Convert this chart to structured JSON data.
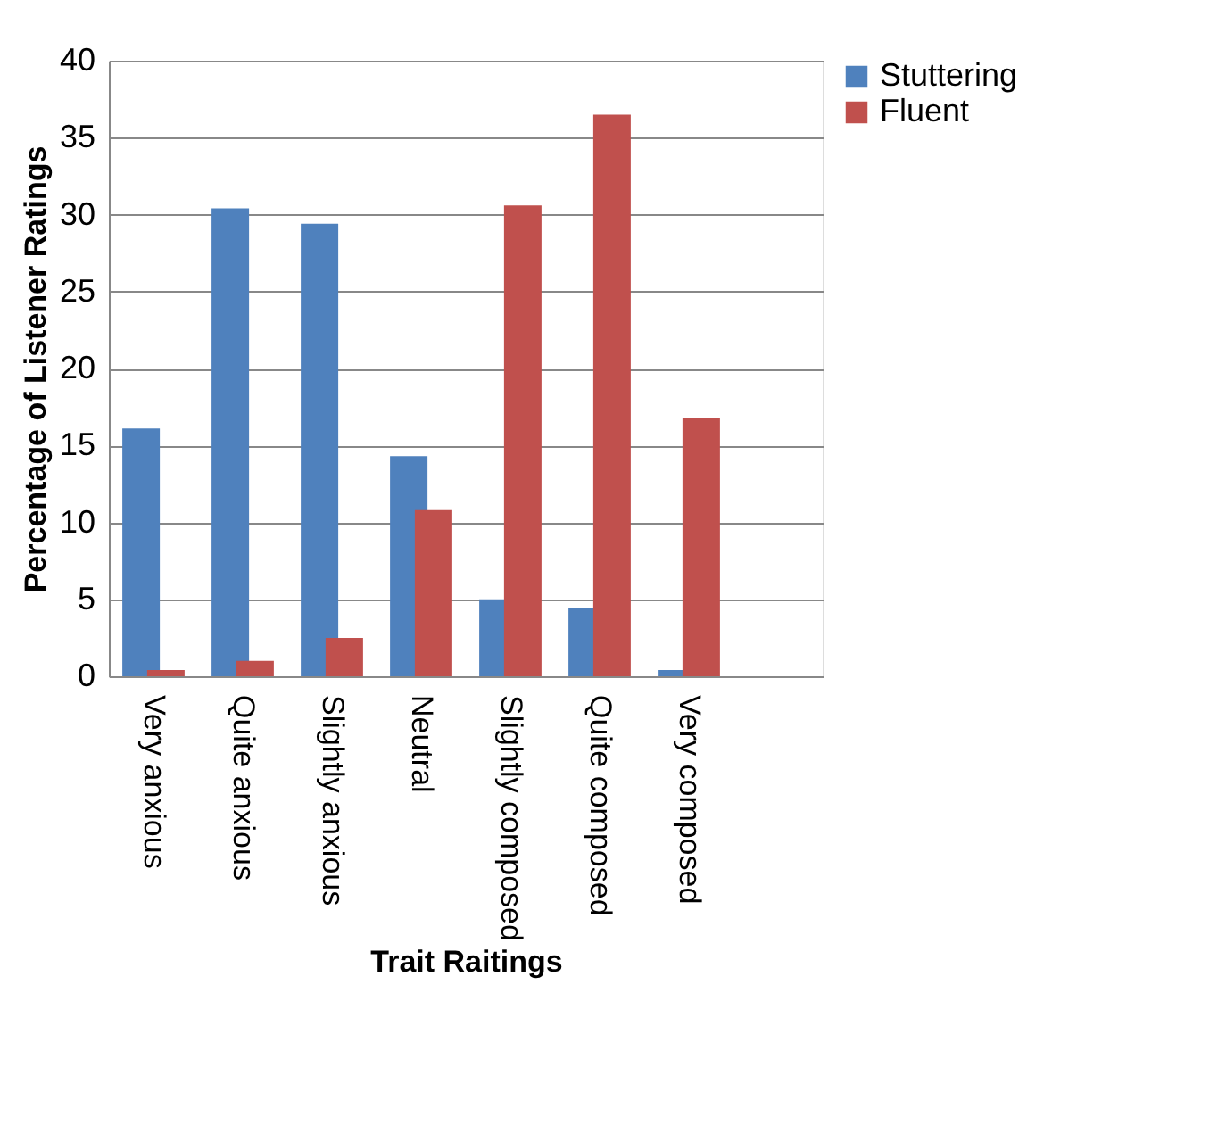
{
  "chart_data": {
    "type": "bar",
    "xlabel": "Trait Raitings",
    "ylabel": "Percentage of Listener Ratings",
    "categories": [
      "Very anxious",
      "Quite anxious",
      "Slightly anxious",
      "Neutral",
      "Slightly composed",
      "Quite composed",
      "Very composed",
      null
    ],
    "series": [
      {
        "name": "Stuttering",
        "color": "#4f81bd",
        "values": [
          16.1,
          30.4,
          29.4,
          14.3,
          5.0,
          4.4,
          0.4,
          null
        ]
      },
      {
        "name": "Fluent",
        "color": "#c0504d",
        "values": [
          0.4,
          1.0,
          2.5,
          10.8,
          30.6,
          36.5,
          16.8,
          null
        ]
      }
    ],
    "ylim": [
      0,
      40
    ],
    "yticks": [
      0,
      5,
      10,
      15,
      20,
      25,
      30,
      35,
      40
    ],
    "grid": "y",
    "legend": "right"
  }
}
